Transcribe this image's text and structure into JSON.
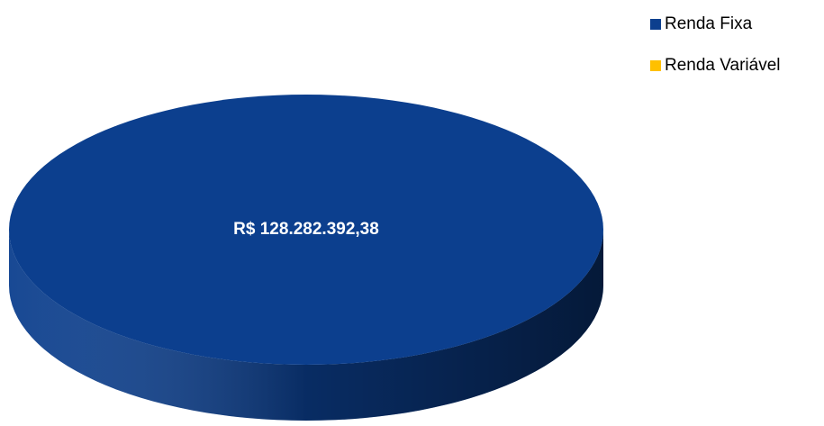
{
  "chart_data": {
    "type": "pie",
    "categories": [
      "Renda Fixa",
      "Renda Variável"
    ],
    "values": [
      128282392.38,
      0
    ],
    "value_labels": [
      "R$ 128.282.392,38",
      null
    ],
    "colors": [
      "#0c3f8e",
      "#ffc000"
    ],
    "legend": "top-right"
  }
}
